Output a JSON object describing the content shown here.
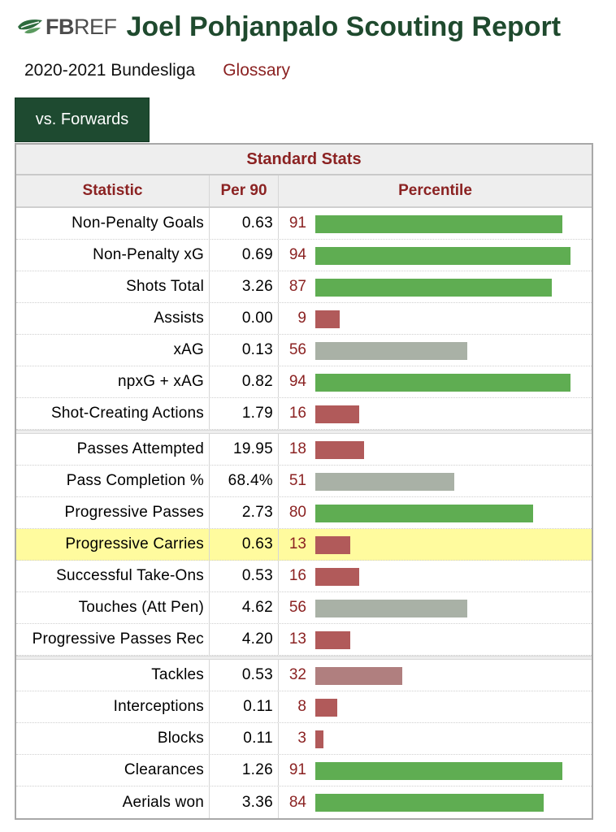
{
  "brand": {
    "logo_text_bold": "FB",
    "logo_text": "REF"
  },
  "title": "Joel Pohjanpalo Scouting Report",
  "season": "2020-2021 Bundesliga",
  "glossary_label": "Glossary",
  "tab_label": "vs. Forwards",
  "table": {
    "title": "Standard Stats",
    "headers": {
      "statistic": "Statistic",
      "per90": "Per 90",
      "percentile": "Percentile"
    },
    "colors": {
      "high": "#5fad52",
      "mid": "#a9b1a6",
      "low": "#b15a5a",
      "lowmid": "#b07f7f",
      "highlight": "#fffb9e"
    },
    "groups": [
      [
        {
          "stat": "Non-Penalty Goals",
          "per90": "0.63",
          "percentile": 91
        },
        {
          "stat": "Non-Penalty xG",
          "per90": "0.69",
          "percentile": 94
        },
        {
          "stat": "Shots Total",
          "per90": "3.26",
          "percentile": 87
        },
        {
          "stat": "Assists",
          "per90": "0.00",
          "percentile": 9
        },
        {
          "stat": "xAG",
          "per90": "0.13",
          "percentile": 56
        },
        {
          "stat": "npxG + xAG",
          "per90": "0.82",
          "percentile": 94
        },
        {
          "stat": "Shot-Creating Actions",
          "per90": "1.79",
          "percentile": 16
        }
      ],
      [
        {
          "stat": "Passes Attempted",
          "per90": "19.95",
          "percentile": 18
        },
        {
          "stat": "Pass Completion %",
          "per90": "68.4%",
          "percentile": 51
        },
        {
          "stat": "Progressive Passes",
          "per90": "2.73",
          "percentile": 80
        },
        {
          "stat": "Progressive Carries",
          "per90": "0.63",
          "percentile": 13,
          "highlighted": true
        },
        {
          "stat": "Successful Take-Ons",
          "per90": "0.53",
          "percentile": 16
        },
        {
          "stat": "Touches (Att Pen)",
          "per90": "4.62",
          "percentile": 56
        },
        {
          "stat": "Progressive Passes Rec",
          "per90": "4.20",
          "percentile": 13
        }
      ],
      [
        {
          "stat": "Tackles",
          "per90": "0.53",
          "percentile": 32
        },
        {
          "stat": "Interceptions",
          "per90": "0.11",
          "percentile": 8
        },
        {
          "stat": "Blocks",
          "per90": "0.11",
          "percentile": 3
        },
        {
          "stat": "Clearances",
          "per90": "1.26",
          "percentile": 91
        },
        {
          "stat": "Aerials won",
          "per90": "3.36",
          "percentile": 84
        }
      ]
    ]
  }
}
